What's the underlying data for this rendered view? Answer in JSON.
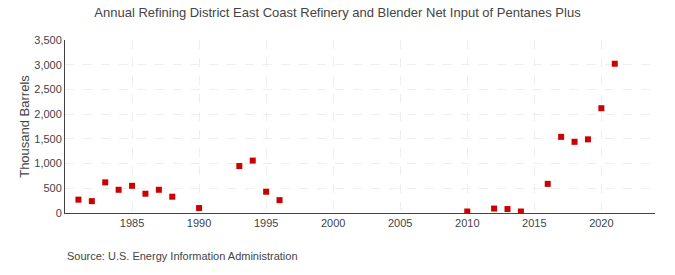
{
  "chart_data": {
    "type": "scatter",
    "title": "Annual Refining District East Coast Refinery and Blender Net Input of Pentanes Plus",
    "ylabel": "Thousand Barrels",
    "source": "Source: U.S. Energy Information Administration",
    "x": [
      1981,
      1982,
      1983,
      1984,
      1985,
      1986,
      1987,
      1988,
      1990,
      1993,
      1994,
      1995,
      1996,
      2010,
      2012,
      2013,
      2014,
      2016,
      2017,
      2018,
      2019,
      2020,
      2021
    ],
    "values": [
      270,
      240,
      620,
      470,
      550,
      390,
      470,
      330,
      100,
      950,
      1060,
      430,
      260,
      30,
      90,
      80,
      30,
      590,
      1540,
      1440,
      1490,
      2120,
      3020
    ],
    "color": "#cc0000",
    "marker": "square",
    "xlim": [
      1980,
      2024
    ],
    "xticks": [
      1985,
      1990,
      1995,
      2000,
      2005,
      2010,
      2015,
      2020
    ],
    "ylim": [
      0,
      3500
    ],
    "yticks": [
      0,
      500,
      {
        "value": 1000,
        "label": "1,000"
      },
      {
        "value": 1500,
        "label": "1,500"
      },
      {
        "value": 2000,
        "label": "2,000"
      },
      {
        "value": 2500,
        "label": "2,500"
      },
      {
        "value": 3000,
        "label": "3,000"
      },
      {
        "value": 3500,
        "label": "3,500"
      }
    ],
    "grid": true
  }
}
